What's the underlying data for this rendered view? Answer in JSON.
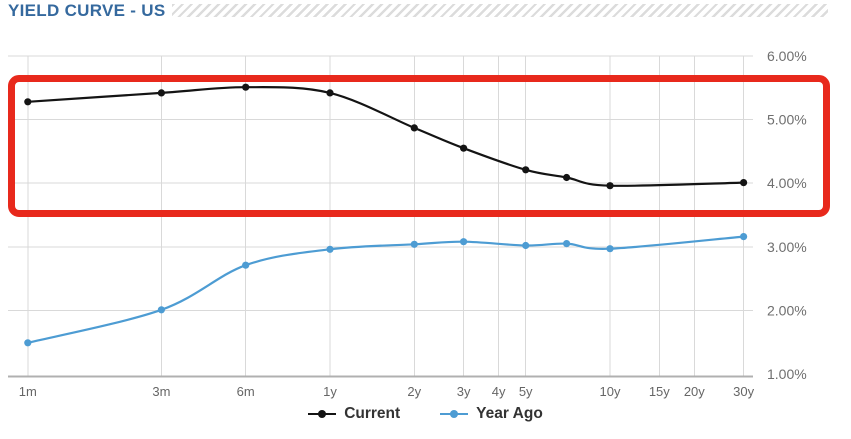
{
  "header": {
    "title": "YIELD CURVE - US"
  },
  "colors": {
    "title_blue": "#35699e",
    "stripe_gray": "#dcdcdc",
    "grid_gray": "#d9d9d9",
    "axis_gray": "#b0b0b0",
    "tick_label_gray": "#6f6f6f",
    "current_black": "#141414",
    "year_ago_blue": "#4d9cd3",
    "annotation_red": "#e8291c",
    "legend_text": "#333333"
  },
  "chart_data": {
    "type": "line",
    "title": "YIELD CURVE - US",
    "x_axis": {
      "scale": "logarithmic-maturity",
      "tick_labels": [
        "1m",
        "3m",
        "6m",
        "1y",
        "2y",
        "3y",
        "4y",
        "5y",
        "10y",
        "15y",
        "20y",
        "30y"
      ],
      "tick_years": [
        0.0833,
        0.25,
        0.5,
        1,
        2,
        3,
        4,
        5,
        10,
        15,
        20,
        30
      ]
    },
    "y_axis": {
      "tick_labels": [
        "1.00%",
        "2.00%",
        "3.00%",
        "4.00%",
        "5.00%",
        "6.00%"
      ],
      "tick_values": [
        1,
        2,
        3,
        4,
        5,
        6
      ],
      "range": [
        1,
        6
      ],
      "unit": "%",
      "side": "right"
    },
    "grid": true,
    "legend_position": "bottom-center",
    "series": [
      {
        "name": "Current",
        "color": "#141414",
        "x_years": [
          0.0833,
          0.25,
          0.5,
          1,
          2,
          3,
          5,
          7,
          10,
          30
        ],
        "values": [
          5.28,
          5.42,
          5.51,
          5.42,
          4.87,
          4.55,
          4.21,
          4.09,
          3.96,
          4.01
        ]
      },
      {
        "name": "Year Ago",
        "color": "#4d9cd3",
        "x_years": [
          0.0833,
          0.25,
          0.5,
          1,
          2,
          3,
          5,
          7,
          10,
          30
        ],
        "values": [
          1.49,
          2.01,
          2.71,
          2.96,
          3.04,
          3.08,
          3.02,
          3.05,
          2.97,
          3.16
        ]
      }
    ],
    "annotation": {
      "shape": "rounded-rectangle",
      "color": "#e8291c",
      "highlights": "Band around the Current (black) curve, roughly 3.5% to 5.7%"
    }
  },
  "legend": {
    "items": [
      {
        "label": "Current",
        "color": "#141414"
      },
      {
        "label": "Year Ago",
        "color": "#4d9cd3"
      }
    ]
  }
}
